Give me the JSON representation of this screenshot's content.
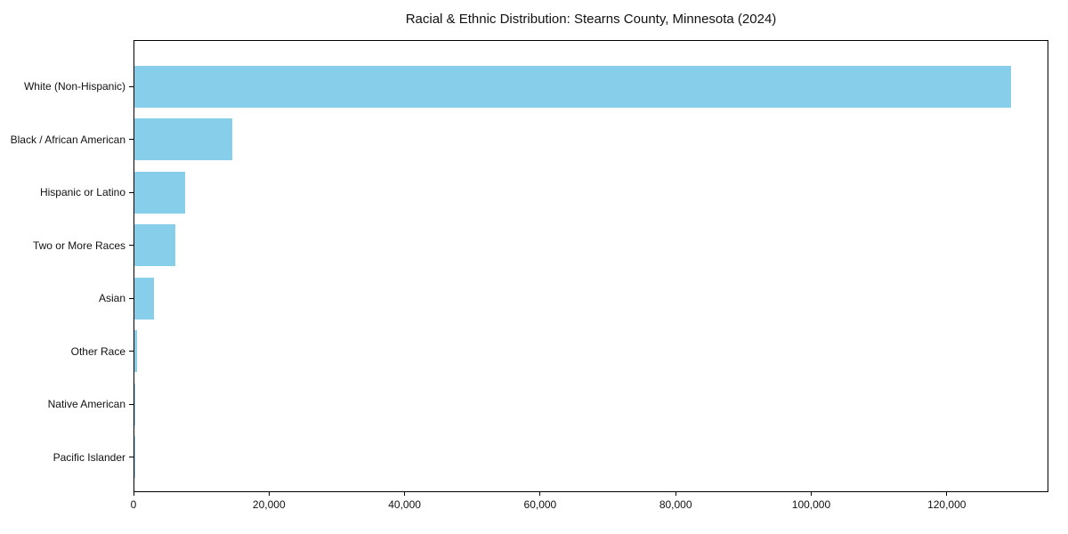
{
  "chart_data": {
    "type": "bar",
    "orientation": "horizontal",
    "title": "Racial & Ethnic Distribution: Stearns County, Minnesota (2024)",
    "categories": [
      "White (Non-Hispanic)",
      "Black / African American",
      "Hispanic or Latino",
      "Two or More Races",
      "Asian",
      "Other Race",
      "Native American",
      "Pacific Islander"
    ],
    "values": [
      129400,
      14400,
      7500,
      6000,
      2900,
      350,
      150,
      60
    ],
    "xlabel": "",
    "ylabel": "",
    "xlim": [
      0,
      135000
    ],
    "x_ticks": [
      0,
      20000,
      40000,
      60000,
      80000,
      100000,
      120000
    ],
    "x_tick_labels": [
      "0",
      "20,000",
      "40,000",
      "60,000",
      "80,000",
      "100,000",
      "120,000"
    ],
    "bar_color": "#87CEEB",
    "axis_color": "#000000",
    "text_color": "#111111",
    "grid": false,
    "legend_position": "none"
  }
}
